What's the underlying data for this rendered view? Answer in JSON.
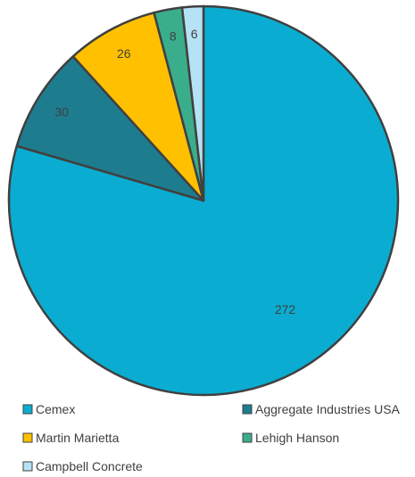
{
  "chart_data": {
    "type": "pie",
    "title": "",
    "categories": [
      "Cemex",
      "Aggregate Industries USA",
      "Martin Marietta",
      "Lehigh Hanson",
      "Campbell Concrete"
    ],
    "values": [
      272,
      30,
      26,
      8,
      6
    ],
    "data_labels": [
      "272",
      "30",
      "26",
      "8",
      "6"
    ],
    "colors": [
      "#0AADD1",
      "#1E7C8F",
      "#FFC000",
      "#3AAE8B",
      "#B5E2F5"
    ],
    "start_angle_deg": 0,
    "direction": "clockwise",
    "legend": {
      "placement": "bottom",
      "entries": [
        "Cemex",
        "Aggregate Industries USA",
        "Martin Marietta",
        "Lehigh Hanson",
        "Campbell Concrete"
      ]
    }
  }
}
